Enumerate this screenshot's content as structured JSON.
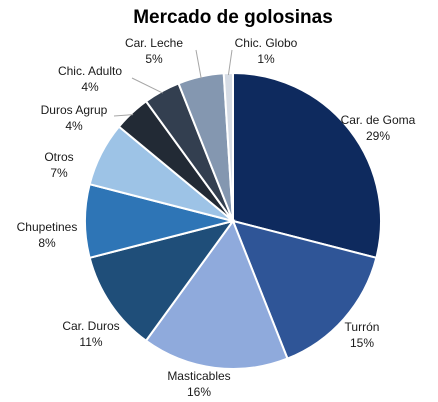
{
  "chart_data": {
    "type": "pie",
    "title": "Mercado de golosinas",
    "slices": [
      {
        "name": "Car. de Goma",
        "value": 29,
        "label": "29%",
        "color": "#0e2a5e"
      },
      {
        "name": "Turrón",
        "value": 15,
        "label": "15%",
        "color": "#2f5597"
      },
      {
        "name": "Masticables",
        "value": 16,
        "label": "16%",
        "color": "#8faadc"
      },
      {
        "name": "Car. Duros",
        "value": 11,
        "label": "11%",
        "color": "#1f4e79"
      },
      {
        "name": "Chupetines",
        "value": 8,
        "label": "8%",
        "color": "#2e75b6"
      },
      {
        "name": "Otros",
        "value": 7,
        "label": "7%",
        "color": "#9dc3e6"
      },
      {
        "name": "Duros Agrup",
        "value": 4,
        "label": "4%",
        "color": "#222a35"
      },
      {
        "name": "Chic. Adulto",
        "value": 4,
        "label": "4%",
        "color": "#333f50"
      },
      {
        "name": "Car. Leche",
        "value": 5,
        "label": "5%",
        "color": "#8497b0"
      },
      {
        "name": "Chic. Globo",
        "value": 1,
        "label": "1%",
        "color": "#d6dce5"
      }
    ]
  }
}
